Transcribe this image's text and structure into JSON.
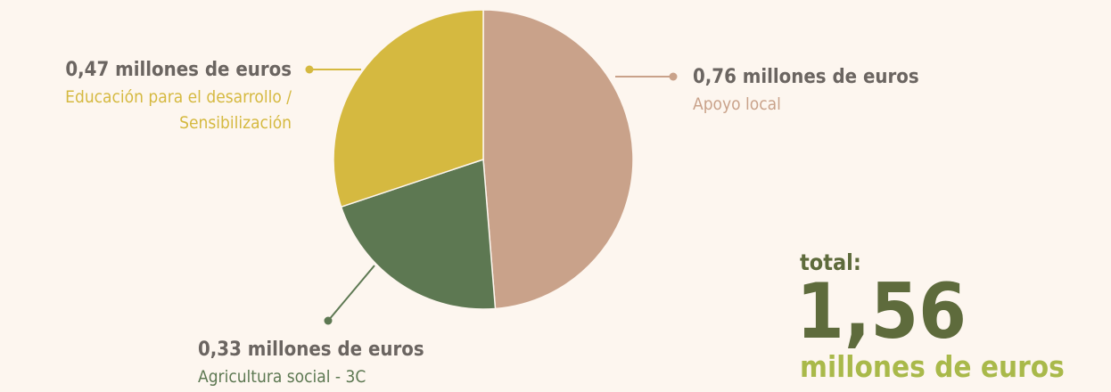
{
  "chart_data": {
    "type": "pie",
    "categories": [
      "Apoyo local",
      "Agricultura social - 3C",
      "Educación para el desarrollo / Sensibilización"
    ],
    "values": [
      0.76,
      0.33,
      0.47
    ],
    "value_labels": [
      "0,76 millones de euros",
      "0,33 millones de euros",
      "0,47 millones de euros"
    ],
    "colors": [
      "#c9a28a",
      "#5d7852",
      "#d5b940"
    ],
    "total_label": "total:",
    "total_value": "1,56",
    "total_unit": "millones de euros"
  }
}
